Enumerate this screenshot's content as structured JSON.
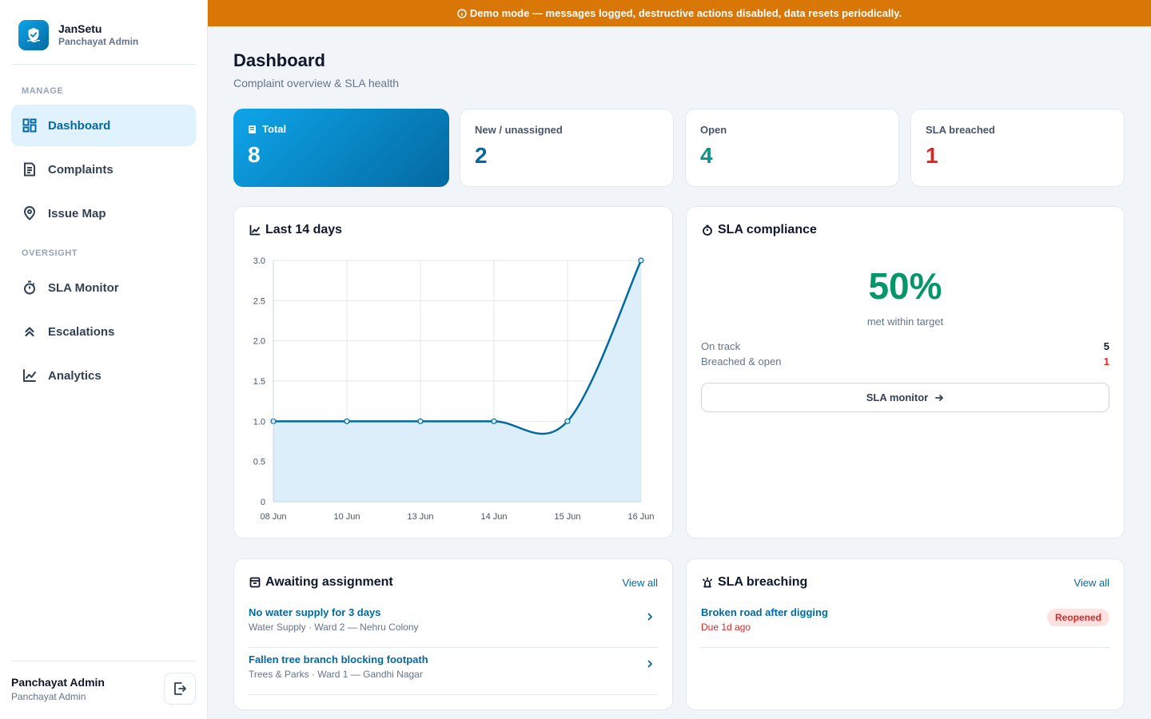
{
  "app": {
    "name": "JanSetu",
    "subtitle": "Panchayat Admin"
  },
  "banner": {
    "text": "Demo mode — messages logged, destructive actions disabled, data resets periodically.",
    "color": "#d97706"
  },
  "sidebar": {
    "sections": [
      {
        "label": "MANAGE",
        "items": [
          {
            "label": "Dashboard",
            "icon": "dashboard-icon",
            "active": true
          },
          {
            "label": "Complaints",
            "icon": "document-icon"
          },
          {
            "label": "Issue Map",
            "icon": "map-pin-icon"
          }
        ]
      },
      {
        "label": "OVERSIGHT",
        "items": [
          {
            "label": "SLA Monitor",
            "icon": "timer-icon"
          },
          {
            "label": "Escalations",
            "icon": "chevrons-up-icon"
          },
          {
            "label": "Analytics",
            "icon": "chart-line-icon"
          }
        ]
      }
    ],
    "user": {
      "name": "Panchayat Admin",
      "role": "Panchayat Admin"
    }
  },
  "header": {
    "title": "Dashboard",
    "subtitle": "Complaint overview & SLA health"
  },
  "stats": [
    {
      "label": "Total",
      "value": "8",
      "color": "#ffffff"
    },
    {
      "label": "New / unassigned",
      "value": "2",
      "color": "#0369a1"
    },
    {
      "label": "Open",
      "value": "4",
      "color": "#0d9488"
    },
    {
      "label": "SLA breached",
      "value": "1",
      "color": "#dc2626"
    }
  ],
  "trend_panel": {
    "title": "Last 14 days"
  },
  "chart_data": {
    "type": "area",
    "title": "Last 14 days",
    "categories": [
      "08 Jun",
      "10 Jun",
      "13 Jun",
      "14 Jun",
      "15 Jun",
      "16 Jun"
    ],
    "series": [
      {
        "values": [
          1,
          1,
          1,
          1,
          1,
          3
        ]
      }
    ],
    "ylim": [
      0,
      3
    ],
    "yticks": [
      "0",
      "0.5",
      "1.0",
      "1.5",
      "2.0",
      "2.5",
      "3.0"
    ],
    "grid": true,
    "line_color": "#0369a1",
    "fill_color": "#dbeefa"
  },
  "sla": {
    "title": "SLA compliance",
    "percent": "50%",
    "caption": "met within target",
    "rows": [
      {
        "label": "On track",
        "value": "5"
      },
      {
        "label": "Breached & open",
        "value": "1"
      }
    ],
    "button": "SLA monitor"
  },
  "awaiting": {
    "title": "Awaiting assignment",
    "view_all": "View all",
    "items": [
      {
        "title": "No water supply for 3 days",
        "sub": "Water Supply · Ward 2 — Nehru Colony"
      },
      {
        "title": "Fallen tree branch blocking footpath",
        "sub": "Trees & Parks · Ward 1 — Gandhi Nagar"
      }
    ]
  },
  "breaching": {
    "title": "SLA breaching",
    "view_all": "View all",
    "items": [
      {
        "title": "Broken road after digging",
        "sub": "Due 1d ago",
        "badge": "Reopened"
      }
    ]
  }
}
